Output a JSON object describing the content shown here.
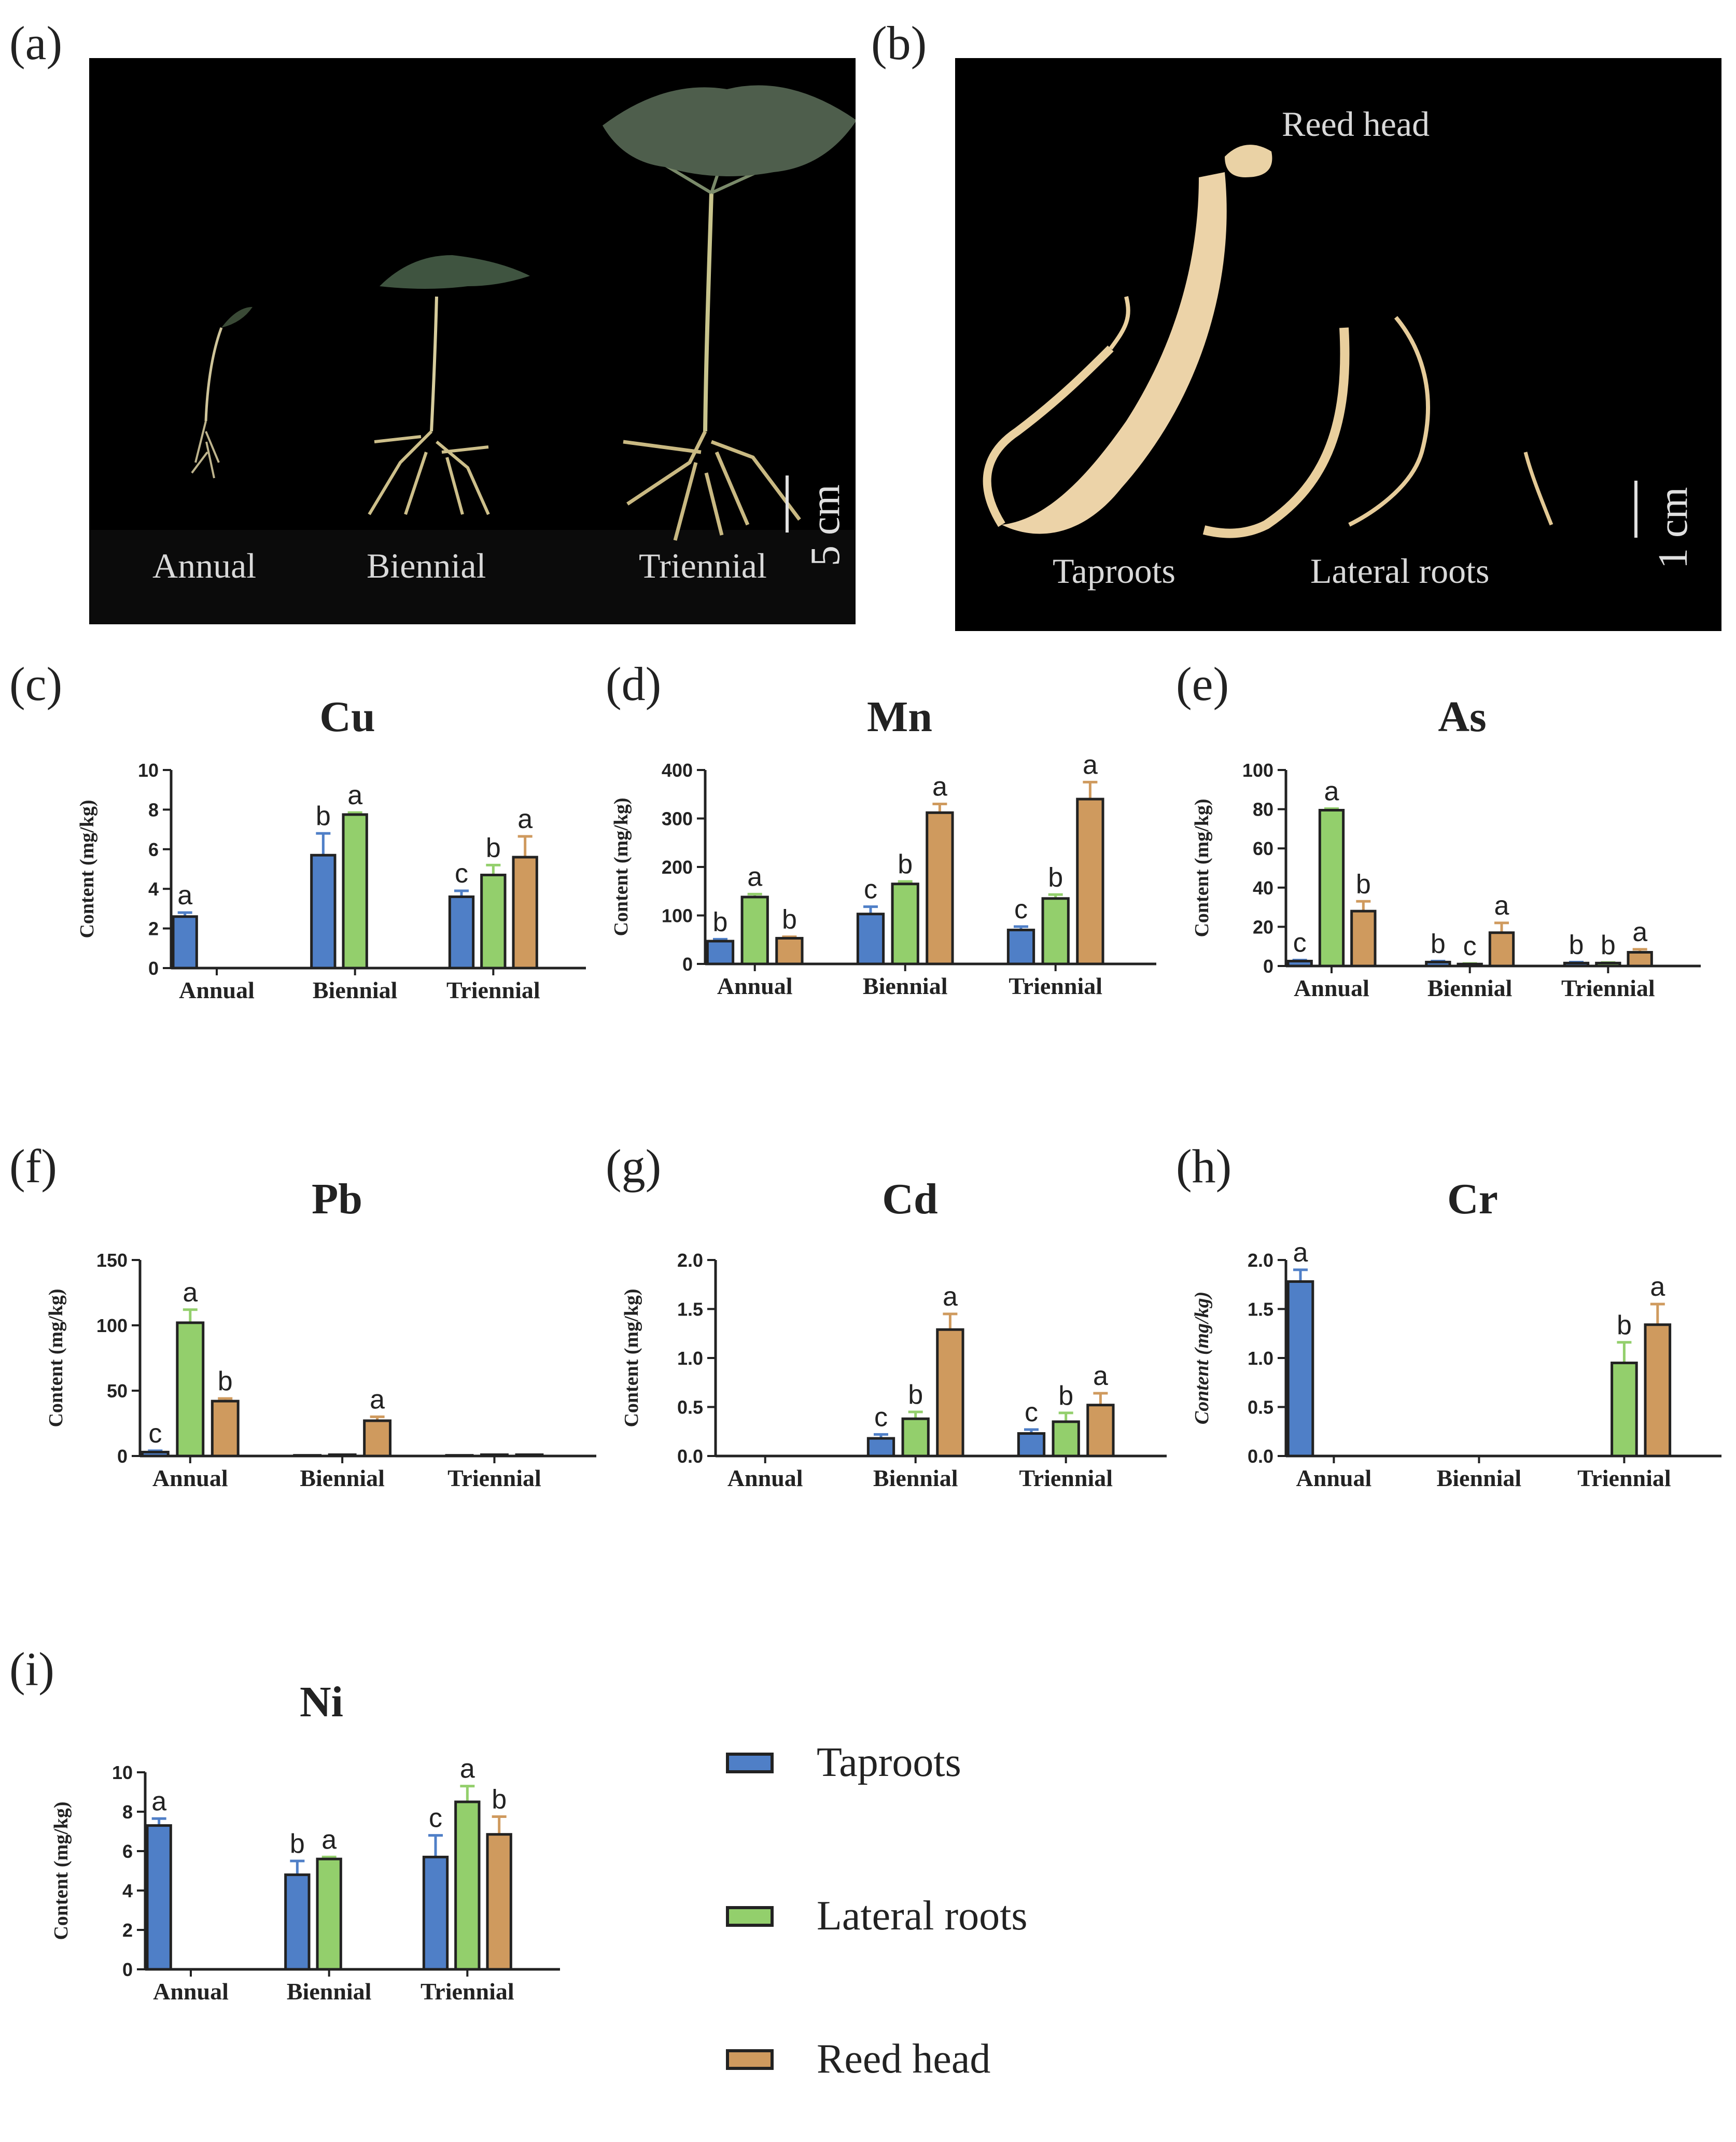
{
  "colors": {
    "taproots": "#4f7fc7",
    "lateral_roots": "#93cf6c",
    "reed_head": "#cf9a5e",
    "axis": "#222222"
  },
  "panel_a": {
    "label": "(a)",
    "texts": [
      "Annual",
      "Biennial",
      "Triennial"
    ],
    "scale": "5 cm"
  },
  "panel_b": {
    "label": "(b)",
    "reed_head": "Reed head",
    "taproots": "Taproots",
    "lateral_roots": "Lateral roots",
    "scale": "1 cm"
  },
  "legend": {
    "items": [
      {
        "label": "Taproots",
        "color": "#4f7fc7"
      },
      {
        "label": "Lateral roots",
        "color": "#93cf6c"
      },
      {
        "label": "Reed head",
        "color": "#cf9a5e"
      }
    ]
  },
  "chart_data": [
    {
      "id": "c",
      "panel_label": "(c)",
      "type": "bar",
      "title": "Cu",
      "ylabel": "Content (mg/kg)",
      "ylim": [
        0,
        10
      ],
      "yticks": [
        0,
        2,
        4,
        6,
        8,
        10
      ],
      "categories": [
        "Annual",
        "Biennial",
        "Triennial"
      ],
      "series": [
        {
          "name": "Taproots",
          "values": [
            2.6,
            5.7,
            3.6
          ],
          "errors": [
            0.2,
            1.1,
            0.3
          ],
          "letters": [
            "a",
            "b",
            "c"
          ]
        },
        {
          "name": "Lateral roots",
          "values": [
            0,
            7.75,
            4.7
          ],
          "errors": [
            0,
            0.1,
            0.5
          ],
          "letters": [
            "",
            "a",
            "b"
          ]
        },
        {
          "name": "Reed head",
          "values": [
            0,
            0,
            5.6
          ],
          "errors": [
            0,
            0,
            1.05
          ],
          "letters": [
            "",
            "",
            "a"
          ]
        }
      ]
    },
    {
      "id": "d",
      "panel_label": "(d)",
      "type": "bar",
      "title": "Mn",
      "ylabel": "Content (mg/kg)",
      "ylim": [
        0,
        400
      ],
      "yticks": [
        0,
        100,
        200,
        300,
        400
      ],
      "categories": [
        "Annual",
        "Biennial",
        "Triennial"
      ],
      "series": [
        {
          "name": "Taproots",
          "values": [
            47,
            103,
            70
          ],
          "errors": [
            4,
            15,
            7
          ],
          "letters": [
            "b",
            "c",
            "c"
          ]
        },
        {
          "name": "Lateral roots",
          "values": [
            138,
            165,
            135
          ],
          "errors": [
            6,
            5,
            8
          ],
          "letters": [
            "a",
            "b",
            "b"
          ]
        },
        {
          "name": "Reed head",
          "values": [
            53,
            312,
            340
          ],
          "errors": [
            3,
            18,
            35
          ],
          "letters": [
            "b",
            "a",
            "a"
          ]
        }
      ]
    },
    {
      "id": "e",
      "panel_label": "(e)",
      "type": "bar",
      "title": "As",
      "ylabel": "Content (mg/kg)",
      "ylim": [
        0,
        100
      ],
      "yticks": [
        0,
        20,
        40,
        60,
        80,
        100
      ],
      "categories": [
        "Annual",
        "Biennial",
        "Triennial"
      ],
      "series": [
        {
          "name": "Taproots",
          "values": [
            2.5,
            2,
            1.5
          ],
          "errors": [
            0.5,
            0.5,
            0.5
          ],
          "letters": [
            "c",
            "b",
            "b"
          ]
        },
        {
          "name": "Lateral roots",
          "values": [
            79.5,
            1,
            1.5
          ],
          "errors": [
            0.8,
            0.3,
            0.3
          ],
          "letters": [
            "a",
            "c",
            "b"
          ]
        },
        {
          "name": "Reed head",
          "values": [
            28,
            17,
            7
          ],
          "errors": [
            5,
            5,
            1.5
          ],
          "letters": [
            "b",
            "a",
            "a"
          ]
        }
      ]
    },
    {
      "id": "f",
      "panel_label": "(f)",
      "type": "bar",
      "title": "Pb",
      "ylabel": "Content (mg/kg)",
      "ylim": [
        0,
        150
      ],
      "yticks": [
        0,
        50,
        100,
        150
      ],
      "categories": [
        "Annual",
        "Biennial",
        "Triennial"
      ],
      "series": [
        {
          "name": "Taproots",
          "values": [
            3,
            0.5,
            0.5
          ],
          "errors": [
            1,
            0,
            0
          ],
          "letters": [
            "c",
            "",
            ""
          ]
        },
        {
          "name": "Lateral roots",
          "values": [
            102,
            1,
            1
          ],
          "errors": [
            10,
            0,
            0
          ],
          "letters": [
            "a",
            "",
            ""
          ]
        },
        {
          "name": "Reed head",
          "values": [
            42,
            27,
            1
          ],
          "errors": [
            2,
            3,
            0
          ],
          "letters": [
            "b",
            "a",
            ""
          ]
        }
      ]
    },
    {
      "id": "g",
      "panel_label": "(g)",
      "type": "bar",
      "title": "Cd",
      "ylabel": "Content (mg/kg)",
      "ylim": [
        0,
        2
      ],
      "yticks": [
        "0.0",
        "0.5",
        "1.0",
        "1.5",
        "2.0"
      ],
      "categories": [
        "Annual",
        "Biennial",
        "Triennial"
      ],
      "series": [
        {
          "name": "Taproots",
          "values": [
            0,
            0.18,
            0.23
          ],
          "errors": [
            0,
            0.04,
            0.04
          ],
          "letters": [
            "",
            "c",
            "c"
          ]
        },
        {
          "name": "Lateral roots",
          "values": [
            0,
            0.38,
            0.35
          ],
          "errors": [
            0,
            0.07,
            0.09
          ],
          "letters": [
            "",
            "b",
            "b"
          ]
        },
        {
          "name": "Reed head",
          "values": [
            0,
            1.29,
            0.52
          ],
          "errors": [
            0,
            0.16,
            0.12
          ],
          "letters": [
            "",
            "a",
            "a"
          ]
        }
      ]
    },
    {
      "id": "h",
      "panel_label": "(h)",
      "type": "bar",
      "title": "Cr",
      "ylabel": "Content (mg/kg)",
      "ylim": [
        0,
        2
      ],
      "yticks": [
        "0.0",
        "0.5",
        "1.0",
        "1.5",
        "2.0"
      ],
      "categories": [
        "Annual",
        "Biennial",
        "Triennial"
      ],
      "series": [
        {
          "name": "Taproots",
          "values": [
            1.78,
            0,
            0
          ],
          "errors": [
            0.12,
            0,
            0
          ],
          "letters": [
            "a",
            "",
            ""
          ]
        },
        {
          "name": "Lateral roots",
          "values": [
            0,
            0,
            0.95
          ],
          "errors": [
            0,
            0,
            0.21
          ],
          "letters": [
            "",
            "",
            "b"
          ]
        },
        {
          "name": "Reed head",
          "values": [
            0,
            0,
            1.34
          ],
          "errors": [
            0,
            0,
            0.21
          ],
          "letters": [
            "",
            "",
            "a"
          ]
        }
      ]
    },
    {
      "id": "i",
      "panel_label": "(i)",
      "type": "bar",
      "title": "Ni",
      "ylabel": "Content (mg/kg)",
      "ylim": [
        0,
        10
      ],
      "yticks": [
        0,
        2,
        4,
        6,
        8,
        10
      ],
      "categories": [
        "Annual",
        "Biennial",
        "Triennial"
      ],
      "series": [
        {
          "name": "Taproots",
          "values": [
            7.3,
            4.8,
            5.7
          ],
          "errors": [
            0.35,
            0.7,
            1.1
          ],
          "letters": [
            "a",
            "b",
            "c"
          ]
        },
        {
          "name": "Lateral roots",
          "values": [
            0,
            5.6,
            8.5
          ],
          "errors": [
            0,
            0.1,
            0.8
          ],
          "letters": [
            "",
            "a",
            "a"
          ]
        },
        {
          "name": "Reed head",
          "values": [
            0,
            0,
            6.85
          ],
          "errors": [
            0,
            0,
            0.9
          ],
          "letters": [
            "",
            "",
            "b"
          ]
        }
      ]
    }
  ]
}
